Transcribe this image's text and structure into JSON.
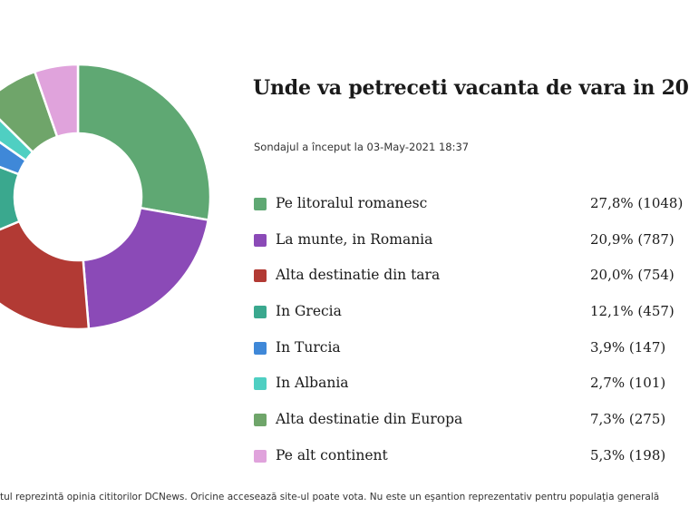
{
  "title": "Unde va petreceti vacanta de vara in 20",
  "subtitle": "Sondajul a început la 03-May-2021 18:37",
  "footer": "tul reprezintă opinia cititorilor DCNews. Oricine accesează site-ul poate vota. Nu este un eşantion reprezentativ pentru populaţia generală",
  "chart_data": {
    "type": "pie",
    "categories": [
      "Pe litoralul romanesc",
      "La munte, in Romania",
      "Alta destinatie din tara",
      "In Grecia",
      "In Turcia",
      "In Albania",
      "Alta destinatie din Europa",
      "Pe alt continent"
    ],
    "values": [
      27.8,
      20.9,
      20.0,
      12.1,
      3.9,
      2.7,
      7.3,
      5.3
    ],
    "labels": [
      "27,8% (1048)",
      "20,9% (787)",
      "20,0% (754)",
      "12,1% (457)",
      "3,9% (147)",
      "2,7% (101)",
      "7,3% (275)",
      "5,3% (198)"
    ],
    "colors": [
      "#5fa873",
      "#8b4ab7",
      "#b23a34",
      "#3aa88e",
      "#3f88d8",
      "#4fcfc2",
      "#6fa56a",
      "#e0a3dc"
    ],
    "legend_position": "right"
  }
}
